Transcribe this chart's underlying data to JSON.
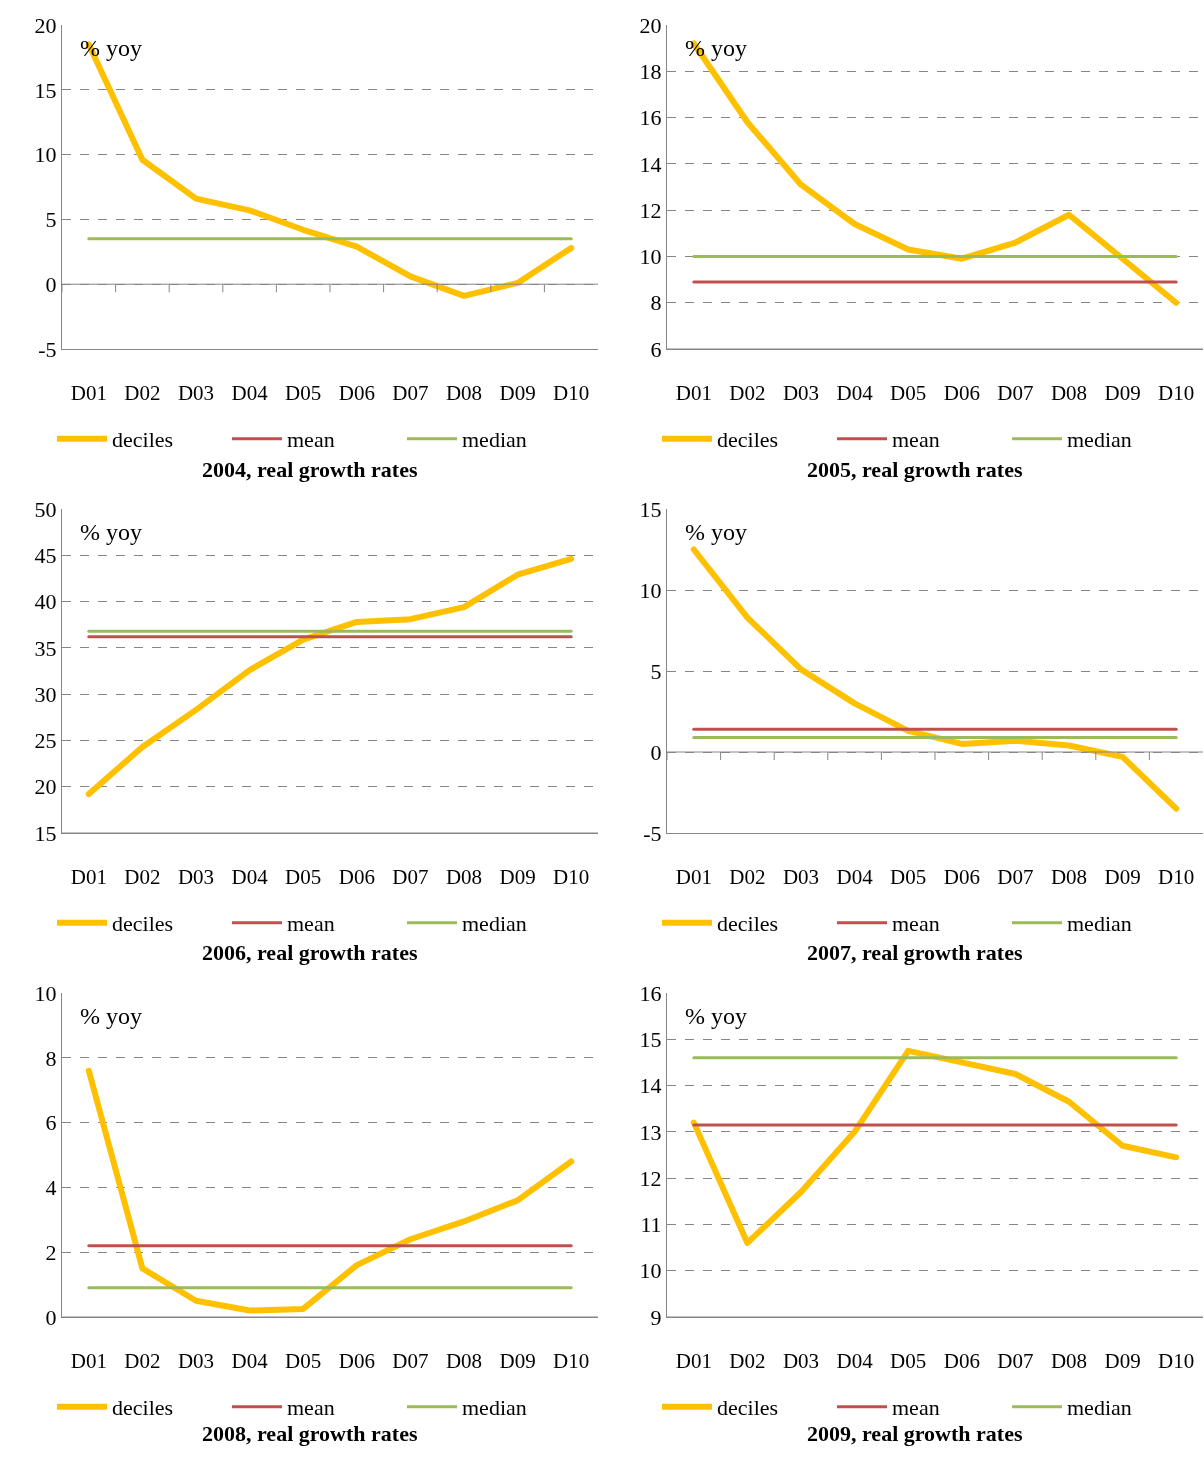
{
  "chart_data": [
    {
      "type": "line",
      "title": "2004, real growth rates",
      "annotations": [
        "% yoy"
      ],
      "categories": [
        "D01",
        "D02",
        "D03",
        "D04",
        "D05",
        "D06",
        "D07",
        "D08",
        "D09",
        "D10"
      ],
      "ylim": [
        -5,
        20
      ],
      "yticks": [
        -5,
        0,
        5,
        10,
        15,
        20
      ],
      "grid": "y",
      "legend": "bottom",
      "series": [
        {
          "name": "deciles",
          "color": "#ffc000",
          "values": [
            18.5,
            9.6,
            6.6,
            5.7,
            4.2,
            2.9,
            0.6,
            -0.9,
            0.1,
            2.8
          ]
        },
        {
          "name": "mean",
          "color": "#c0504d",
          "values": [
            null,
            null,
            null,
            null,
            null,
            null,
            null,
            null,
            null,
            null
          ]
        },
        {
          "name": "median",
          "color": "#9bbb59",
          "values": [
            3.5,
            3.5,
            3.5,
            3.5,
            3.5,
            3.5,
            3.5,
            3.5,
            3.5,
            3.5
          ]
        }
      ]
    },
    {
      "type": "line",
      "title": "2005, real growth rates",
      "annotations": [
        "% yoy"
      ],
      "categories": [
        "D01",
        "D02",
        "D03",
        "D04",
        "D05",
        "D06",
        "D07",
        "D08",
        "D09",
        "D10"
      ],
      "ylim": [
        6,
        20
      ],
      "yticks": [
        6,
        8,
        10,
        12,
        14,
        16,
        18,
        20
      ],
      "grid": "y",
      "legend": "bottom",
      "series": [
        {
          "name": "deciles",
          "color": "#ffc000",
          "values": [
            19.2,
            15.8,
            13.1,
            11.4,
            10.3,
            9.9,
            10.6,
            11.8,
            9.9,
            8.0
          ]
        },
        {
          "name": "mean",
          "color": "#c0504d",
          "values": [
            8.9,
            8.9,
            8.9,
            8.9,
            8.9,
            8.9,
            8.9,
            8.9,
            8.9,
            8.9
          ]
        },
        {
          "name": "median",
          "color": "#9bbb59",
          "values": [
            10.0,
            10.0,
            10.0,
            10.0,
            10.0,
            10.0,
            10.0,
            10.0,
            10.0,
            10.0
          ]
        }
      ]
    },
    {
      "type": "line",
      "title": "2006, real growth rates",
      "annotations": [
        "% yoy"
      ],
      "categories": [
        "D01",
        "D02",
        "D03",
        "D04",
        "D05",
        "D06",
        "D07",
        "D08",
        "D09",
        "D10"
      ],
      "ylim": [
        15,
        50
      ],
      "yticks": [
        15,
        20,
        25,
        30,
        35,
        40,
        45,
        50
      ],
      "grid": "y",
      "legend": "bottom",
      "series": [
        {
          "name": "deciles",
          "color": "#ffc000",
          "values": [
            19.2,
            24.3,
            28.3,
            32.6,
            35.9,
            37.8,
            38.1,
            39.4,
            42.9,
            44.6
          ]
        },
        {
          "name": "mean",
          "color": "#c0504d",
          "values": [
            36.2,
            36.2,
            36.2,
            36.2,
            36.2,
            36.2,
            36.2,
            36.2,
            36.2,
            36.2
          ]
        },
        {
          "name": "median",
          "color": "#9bbb59",
          "values": [
            36.8,
            36.8,
            36.8,
            36.8,
            36.8,
            36.8,
            36.8,
            36.8,
            36.8,
            36.8
          ]
        }
      ]
    },
    {
      "type": "line",
      "title": "2007, real growth rates",
      "annotations": [
        "% yoy"
      ],
      "categories": [
        "D01",
        "D02",
        "D03",
        "D04",
        "D05",
        "D06",
        "D07",
        "D08",
        "D09",
        "D10"
      ],
      "ylim": [
        -5,
        15
      ],
      "yticks": [
        -5,
        0,
        5,
        10,
        15
      ],
      "grid": "y",
      "legend": "bottom",
      "series": [
        {
          "name": "deciles",
          "color": "#ffc000",
          "values": [
            12.5,
            8.3,
            5.1,
            3.0,
            1.3,
            0.5,
            0.7,
            0.4,
            -0.3,
            -3.5
          ]
        },
        {
          "name": "mean",
          "color": "#c0504d",
          "values": [
            1.4,
            1.4,
            1.4,
            1.4,
            1.4,
            1.4,
            1.4,
            1.4,
            1.4,
            1.4
          ]
        },
        {
          "name": "median",
          "color": "#9bbb59",
          "values": [
            0.9,
            0.9,
            0.9,
            0.9,
            0.9,
            0.9,
            0.9,
            0.9,
            0.9,
            0.9
          ]
        }
      ]
    },
    {
      "type": "line",
      "title": "2008, real growth rates",
      "annotations": [
        "% yoy"
      ],
      "categories": [
        "D01",
        "D02",
        "D03",
        "D04",
        "D05",
        "D06",
        "D07",
        "D08",
        "D09",
        "D10"
      ],
      "ylim": [
        0,
        10
      ],
      "yticks": [
        0,
        2,
        4,
        6,
        8,
        10
      ],
      "grid": "y",
      "legend": "bottom",
      "series": [
        {
          "name": "deciles",
          "color": "#ffc000",
          "values": [
            7.6,
            1.5,
            0.5,
            0.2,
            0.25,
            1.6,
            2.4,
            2.95,
            3.6,
            4.8
          ]
        },
        {
          "name": "mean",
          "color": "#c0504d",
          "values": [
            2.2,
            2.2,
            2.2,
            2.2,
            2.2,
            2.2,
            2.2,
            2.2,
            2.2,
            2.2
          ]
        },
        {
          "name": "median",
          "color": "#9bbb59",
          "values": [
            0.9,
            0.9,
            0.9,
            0.9,
            0.9,
            0.9,
            0.9,
            0.9,
            0.9,
            0.9
          ]
        }
      ]
    },
    {
      "type": "line",
      "title": "2009, real growth rates",
      "annotations": [
        "% yoy"
      ],
      "categories": [
        "D01",
        "D02",
        "D03",
        "D04",
        "D05",
        "D06",
        "D07",
        "D08",
        "D09",
        "D10"
      ],
      "ylim": [
        9,
        16
      ],
      "yticks": [
        9,
        10,
        11,
        12,
        13,
        14,
        15,
        16
      ],
      "grid": "y",
      "legend": "bottom",
      "series": [
        {
          "name": "deciles",
          "color": "#ffc000",
          "values": [
            13.2,
            10.6,
            11.7,
            13.0,
            14.75,
            14.5,
            14.25,
            13.65,
            12.7,
            12.45
          ]
        },
        {
          "name": "mean",
          "color": "#c0504d",
          "values": [
            13.15,
            13.15,
            13.15,
            13.15,
            13.15,
            13.15,
            13.15,
            13.15,
            13.15,
            13.15
          ]
        },
        {
          "name": "median",
          "color": "#9bbb59",
          "values": [
            14.6,
            14.6,
            14.6,
            14.6,
            14.6,
            14.6,
            14.6,
            14.6,
            14.6,
            14.6
          ]
        }
      ]
    }
  ]
}
